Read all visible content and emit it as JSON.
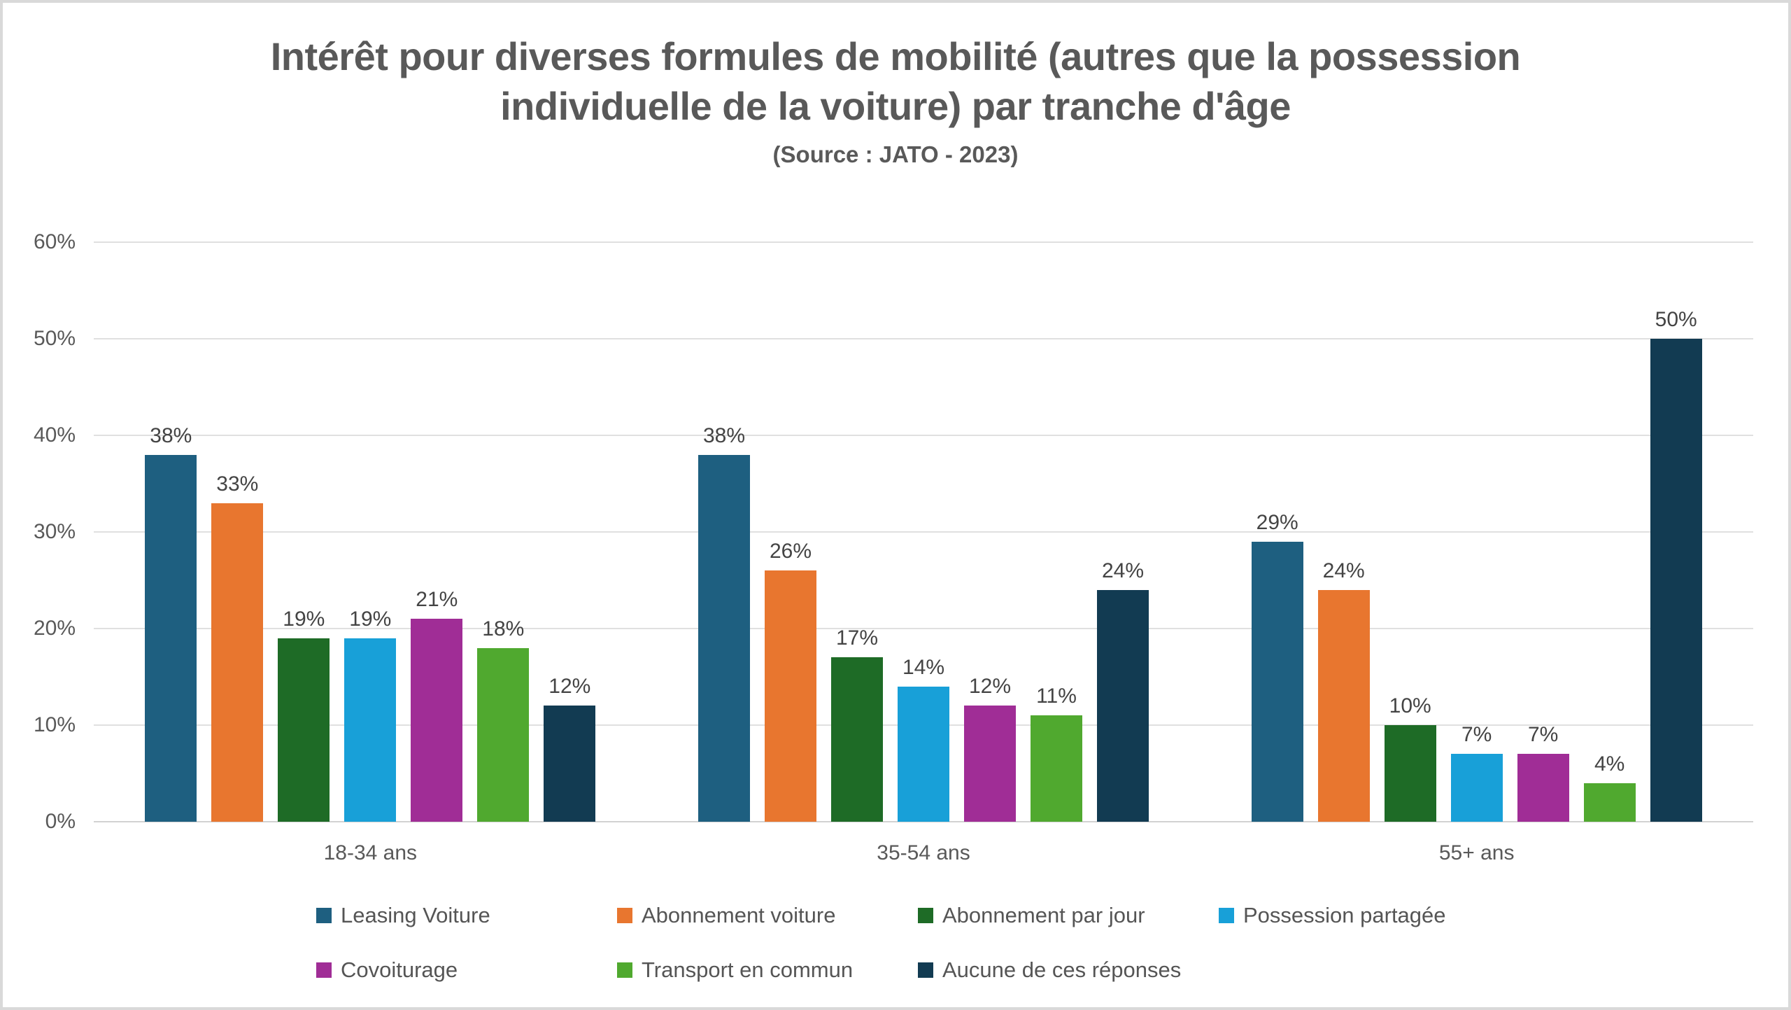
{
  "chart_data": {
    "type": "bar",
    "title": "Intérêt pour diverses formules de mobilité (autres que la possession individuelle de la voiture) par tranche d'âge",
    "subtitle": "(Source : JATO - 2023)",
    "categories": [
      "18-34 ans",
      "35-54 ans",
      "55+ ans"
    ],
    "series": [
      {
        "name": "Leasing Voiture",
        "color": "#1E5F80",
        "values": [
          38,
          38,
          29
        ]
      },
      {
        "name": "Abonnement voiture",
        "color": "#E8762F",
        "values": [
          33,
          26,
          24
        ]
      },
      {
        "name": "Abonnement par jour",
        "color": "#1E6B26",
        "values": [
          19,
          17,
          10
        ]
      },
      {
        "name": "Possession partagée",
        "color": "#18A0D8",
        "values": [
          19,
          14,
          7
        ]
      },
      {
        "name": "Covoiturage",
        "color": "#A02D96",
        "values": [
          21,
          12,
          7
        ]
      },
      {
        "name": "Transport en commun",
        "color": "#50A92F",
        "values": [
          18,
          11,
          4
        ]
      },
      {
        "name": "Aucune de ces réponses",
        "color": "#123B52",
        "values": [
          12,
          24,
          50
        ]
      }
    ],
    "data_label_suffix": "%",
    "y_ticks": [
      "0%",
      "10%",
      "20%",
      "30%",
      "40%",
      "50%",
      "60%"
    ],
    "ylim": [
      0,
      60
    ],
    "grid": true,
    "legend_position": "bottom",
    "colors": {
      "title_text": "#595959",
      "axis_text": "#595959",
      "data_label_text": "#444444",
      "gridline": "#E0E0E0",
      "frame_border": "#D9D9D9",
      "background": "#FFFFFF"
    }
  }
}
